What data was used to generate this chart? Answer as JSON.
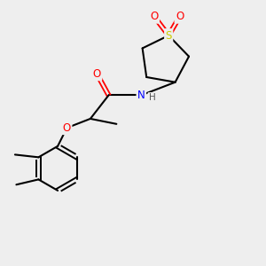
{
  "bg_color": "#eeeeee",
  "atom_colors": {
    "C": "#000000",
    "O": "#ff0000",
    "N": "#0000ff",
    "S": "#cccc00",
    "H": "#555555"
  },
  "bond_color": "#000000",
  "figsize": [
    3.0,
    3.0
  ],
  "dpi": 100,
  "xlim": [
    0,
    10
  ],
  "ylim": [
    0,
    10
  ]
}
